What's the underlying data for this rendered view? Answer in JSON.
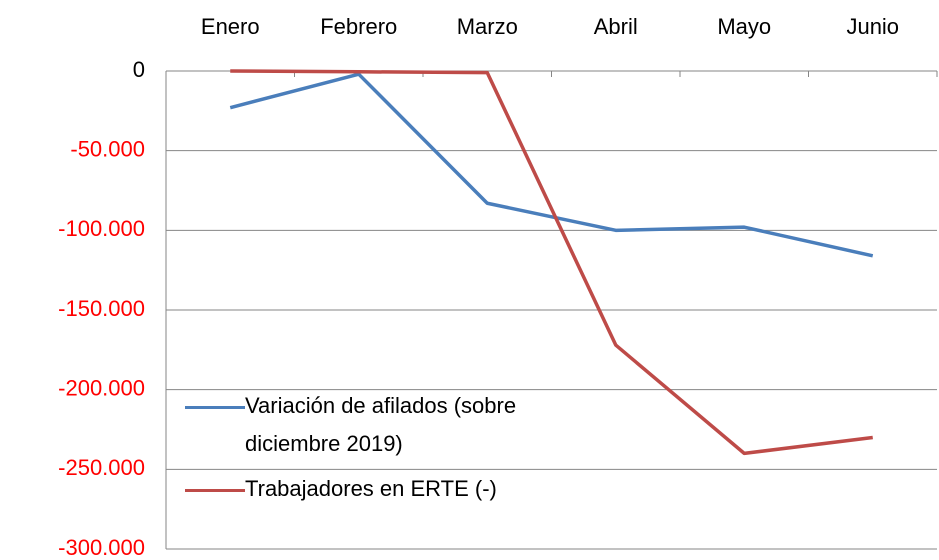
{
  "chart_data": {
    "type": "line",
    "categories": [
      "Enero",
      "Febrero",
      "Marzo",
      "Abril",
      "Mayo",
      "Junio"
    ],
    "series": [
      {
        "name": "Variación de afilados (sobre diciembre 2019)",
        "color": "#4a7ebb",
        "values": [
          -23000,
          -2000,
          -83000,
          -100000,
          -98000,
          -116000
        ]
      },
      {
        "name": "Trabajadores en ERTE (-)",
        "color": "#be4b48",
        "values": [
          0,
          -500,
          -1000,
          -172000,
          -240000,
          -230000
        ]
      }
    ],
    "ylim": [
      -300000,
      0
    ],
    "yticks": [
      0,
      {
        "value": -50000,
        "label": "-50.000"
      },
      {
        "value": -100000,
        "label": "-100.000"
      },
      {
        "value": -150000,
        "label": "-150.000"
      },
      {
        "value": -200000,
        "label": "-200.000"
      },
      {
        "value": -250000,
        "label": "-250.000"
      },
      {
        "value": -300000,
        "label": "-300.000"
      }
    ],
    "grid": true,
    "negative_tick_color": "#ff0000",
    "legend": "lower left"
  }
}
